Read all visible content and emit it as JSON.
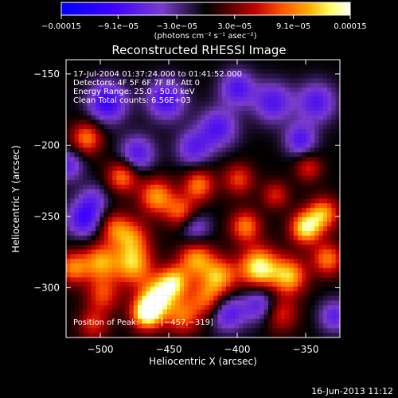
{
  "chart_data": {
    "type": "heatmap",
    "title": "Reconstructed RHESSI Image",
    "xlabel": "Heliocentric X (arcsec)",
    "ylabel": "Heliocentric Y (arcsec)",
    "xlim": [
      -525,
      -325
    ],
    "ylim": [
      -335,
      -140
    ],
    "x_ticks": [
      -500,
      -450,
      -400,
      -350
    ],
    "x_tick_labels": [
      "−500",
      "−450",
      "−400",
      "−350"
    ],
    "y_ticks": [
      -300,
      -250,
      -200,
      -150
    ],
    "y_tick_labels": [
      "−300",
      "−250",
      "−200",
      "−150"
    ],
    "colorbar": {
      "min": -0.00015,
      "max": 0.00015,
      "ticks": [
        -0.00015,
        -9.1e-05,
        -3e-05,
        3e-05,
        9.1e-05,
        0.00015
      ],
      "tick_labels": [
        "−0.00015",
        "−9.1e−05",
        "−3.0e−05",
        "3.0e−05",
        "9.1e−05",
        "0.00015"
      ],
      "units": "(photons cm⁻² s⁻¹ asec⁻²)"
    },
    "annotations": [
      "17-Jul-2004 01:37:24.000 to 01:41:52.000",
      "Detectors: 4F 5F 6F 7F 8F, Att 0",
      "Energy Range: 25.0 - 50.0 keV",
      "Clean     Total counts: 6.56E+03"
    ],
    "position_label": "Position of Peak:",
    "position_value": "[−457,−319]",
    "footer_timestamp": "16-Jun-2013 11:12",
    "image_grid": {
      "nx": 65,
      "ny": 60,
      "background_value": 0.0,
      "features": [
        {
          "x": -466,
          "y": -318,
          "amp": 0.00015,
          "sigma": 8
        },
        {
          "x": -458,
          "y": -306,
          "amp": 0.00012,
          "sigma": 9
        },
        {
          "x": -446,
          "y": -296,
          "amp": 0.00011,
          "sigma": 8
        },
        {
          "x": -476,
          "y": -284,
          "amp": 0.00011,
          "sigma": 10
        },
        {
          "x": -500,
          "y": -282,
          "amp": 0.0001,
          "sigma": 9
        },
        {
          "x": -520,
          "y": -286,
          "amp": 9e-05,
          "sigma": 8
        },
        {
          "x": -430,
          "y": -280,
          "amp": 0.0001,
          "sigma": 9
        },
        {
          "x": -413,
          "y": -292,
          "amp": 0.0001,
          "sigma": 9
        },
        {
          "x": -384,
          "y": -286,
          "amp": 0.00014,
          "sigma": 10
        },
        {
          "x": -362,
          "y": -292,
          "amp": 0.00011,
          "sigma": 9
        },
        {
          "x": -350,
          "y": -258,
          "amp": 0.00013,
          "sigma": 8
        },
        {
          "x": -337,
          "y": -248,
          "amp": 0.0001,
          "sigma": 8
        },
        {
          "x": -334,
          "y": -280,
          "amp": 9e-05,
          "sigma": 8
        },
        {
          "x": -394,
          "y": -257,
          "amp": 9e-05,
          "sigma": 8
        },
        {
          "x": -428,
          "y": -228,
          "amp": 9e-05,
          "sigma": 8
        },
        {
          "x": -459,
          "y": -236,
          "amp": 0.0001,
          "sigma": 9
        },
        {
          "x": -484,
          "y": -222,
          "amp": 9e-05,
          "sigma": 8
        },
        {
          "x": -477,
          "y": -265,
          "amp": 8e-05,
          "sigma": 9
        },
        {
          "x": -441,
          "y": -247,
          "amp": 8e-05,
          "sigma": 8
        },
        {
          "x": -510,
          "y": -195,
          "amp": 9e-05,
          "sigma": 8
        },
        {
          "x": -490,
          "y": -258,
          "amp": 7e-05,
          "sigma": 8
        },
        {
          "x": -399,
          "y": -224,
          "amp": 7e-05,
          "sigma": 8
        },
        {
          "x": -372,
          "y": -235,
          "amp": 6e-05,
          "sigma": 7
        },
        {
          "x": -348,
          "y": -216,
          "amp": 6e-05,
          "sigma": 7
        },
        {
          "x": -440,
          "y": -320,
          "amp": 8e-05,
          "sigma": 9
        },
        {
          "x": -422,
          "y": -308,
          "amp": 8e-05,
          "sigma": 9
        },
        {
          "x": -505,
          "y": -326,
          "amp": 6e-05,
          "sigma": 8
        },
        {
          "x": -498,
          "y": -305,
          "amp": 7e-05,
          "sigma": 9
        },
        {
          "x": -369,
          "y": -318,
          "amp": 7e-05,
          "sigma": 9
        },
        {
          "x": -495,
          "y": -170,
          "amp": -0.0001,
          "sigma": 10
        },
        {
          "x": -452,
          "y": -168,
          "amp": -9e-05,
          "sigma": 10
        },
        {
          "x": -414,
          "y": -188,
          "amp": -8e-05,
          "sigma": 10
        },
        {
          "x": -374,
          "y": -170,
          "amp": -8e-05,
          "sigma": 10
        },
        {
          "x": -342,
          "y": -170,
          "amp": -8e-05,
          "sigma": 10
        },
        {
          "x": -512,
          "y": -252,
          "amp": -9e-05,
          "sigma": 9
        },
        {
          "x": -407,
          "y": -318,
          "amp": -8e-05,
          "sigma": 9
        },
        {
          "x": -383,
          "y": -312,
          "amp": -8e-05,
          "sigma": 9
        },
        {
          "x": -329,
          "y": -320,
          "amp": -7e-05,
          "sigma": 8
        },
        {
          "x": -473,
          "y": -206,
          "amp": -8e-05,
          "sigma": 9
        },
        {
          "x": -432,
          "y": -202,
          "amp": -7e-05,
          "sigma": 9
        },
        {
          "x": -354,
          "y": -196,
          "amp": -8e-05,
          "sigma": 8
        },
        {
          "x": -524,
          "y": -214,
          "amp": -7e-05,
          "sigma": 8
        },
        {
          "x": -400,
          "y": -160,
          "amp": -8e-05,
          "sigma": 9
        },
        {
          "x": -431,
          "y": -258,
          "amp": -6e-05,
          "sigma": 8
        },
        {
          "x": -505,
          "y": -238,
          "amp": -5e-05,
          "sigma": 8
        }
      ]
    }
  }
}
